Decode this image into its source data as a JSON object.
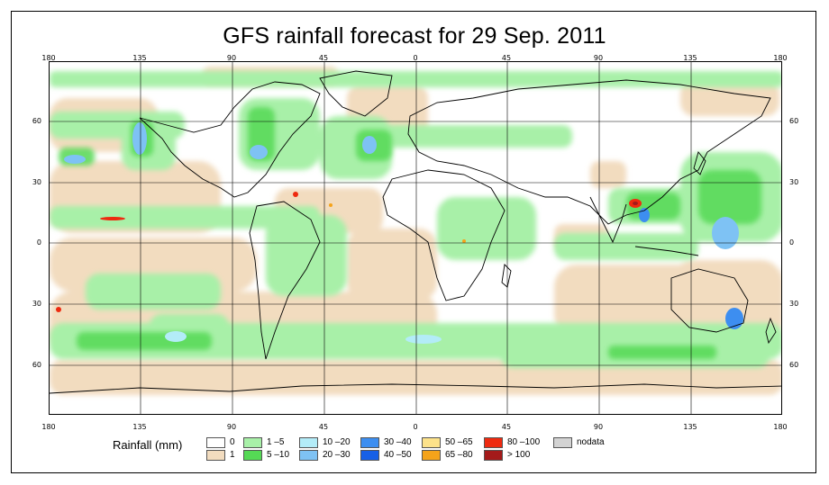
{
  "title": "GFS rainfall forecast for 29 Sep. 2011",
  "longitude_ticks": [
    "180",
    "135",
    "90",
    "45",
    "0",
    "45",
    "90",
    "135",
    "180"
  ],
  "latitude_ticks": [
    "60",
    "30",
    "0",
    "30",
    "60"
  ],
  "legend": {
    "title": "Rainfall (mm)",
    "items": [
      {
        "label": "0",
        "color": "#ffffff"
      },
      {
        "label": "1",
        "color": "#f2dcbf"
      },
      {
        "label": "1 –5",
        "color": "#a8f0a8"
      },
      {
        "label": "5 –10",
        "color": "#55d955"
      },
      {
        "label": "10 –20",
        "color": "#b3ecf8"
      },
      {
        "label": "20 –30",
        "color": "#7ec2f4"
      },
      {
        "label": "30 –40",
        "color": "#3d8ef0"
      },
      {
        "label": "40 –50",
        "color": "#1760e6"
      },
      {
        "label": "50 –65",
        "color": "#fde28a"
      },
      {
        "label": "65 –80",
        "color": "#f5a31a"
      },
      {
        "label": "80 –100",
        "color": "#ee2a10"
      },
      {
        "label": "> 100",
        "color": "#a41a1a"
      },
      {
        "label": "nodata",
        "color": "#d3d3d3"
      }
    ]
  }
}
